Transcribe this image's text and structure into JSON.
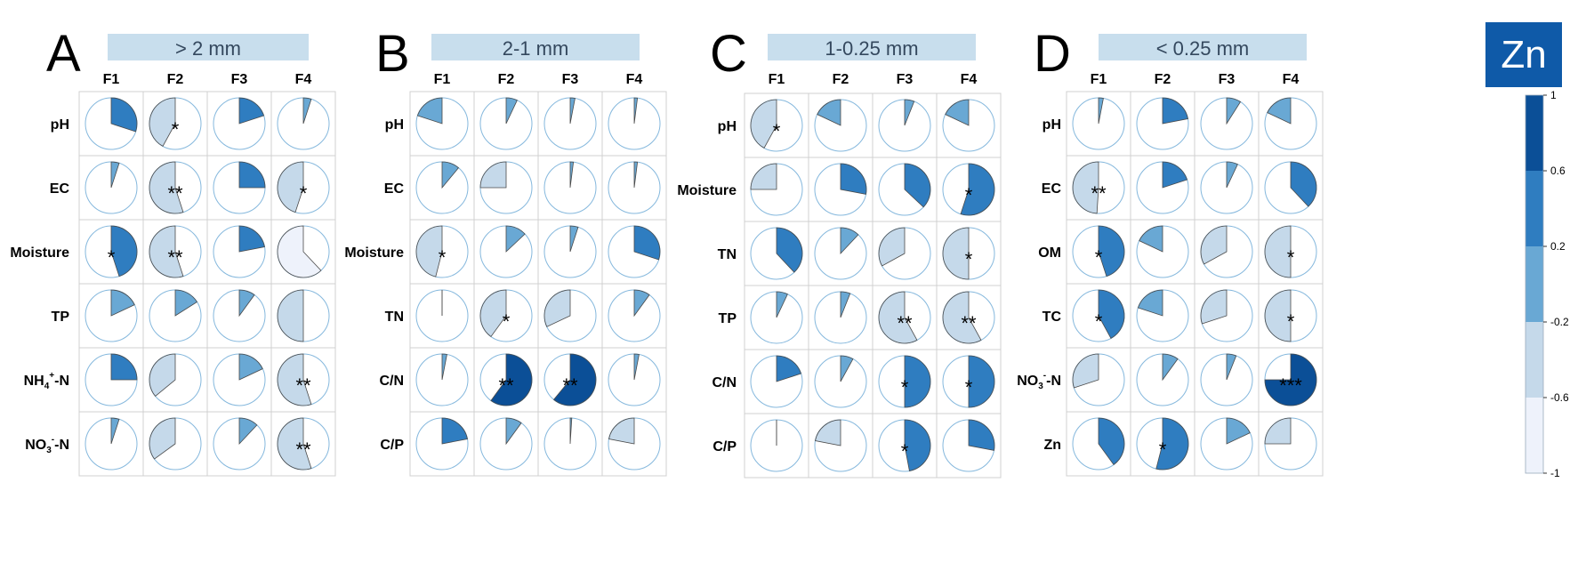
{
  "colors": {
    "level_1": "#eef2fb",
    "level_2": "#c5d9ea",
    "level_3": "#69a8d4",
    "level_4": "#2f7dc0",
    "level_5": "#0b4f97",
    "circle_stroke": "#85b8dd",
    "grid": "#d0d0d0",
    "header_fill": "#c8deed",
    "header_text": "#34485e",
    "badge_fill": "#0f5aa8",
    "badge_text": "#ffffff"
  },
  "badge": {
    "label": "Zn"
  },
  "colorbar": {
    "ticks": [
      "1",
      "0.6",
      "0.2",
      "-0.2",
      "-0.6",
      "-1"
    ],
    "levels": [
      "level_5",
      "level_4",
      "level_3",
      "level_2",
      "level_1"
    ]
  },
  "chart_data": [
    {
      "type": "heatmap",
      "panel": "A",
      "title": "> 2 mm",
      "columns": [
        "F1",
        "F2",
        "F3",
        "F4"
      ],
      "rows": [
        "pH",
        "EC",
        "Moisture",
        "TP",
        "NH4+-N",
        "NO3--N"
      ],
      "row_labels": [
        {
          "main": "pH"
        },
        {
          "main": "EC"
        },
        {
          "main": "Moisture"
        },
        {
          "main": "TP"
        },
        {
          "main": "NH",
          "sub": "4",
          "sup": "+",
          "tail": "-N"
        },
        {
          "main": "NO",
          "sub": "3",
          "sup": "-",
          "tail": "-N"
        }
      ],
      "values": [
        [
          0.3,
          -0.42,
          0.2,
          0.05
        ],
        [
          0.05,
          -0.55,
          0.25,
          -0.45
        ],
        [
          0.45,
          -0.55,
          0.22,
          -0.62
        ],
        [
          0.18,
          0.16,
          0.1,
          -0.5
        ],
        [
          0.25,
          -0.36,
          0.18,
          -0.55
        ],
        [
          0.05,
          -0.35,
          0.12,
          -0.55
        ]
      ],
      "significance": [
        [
          "",
          "*",
          "",
          ""
        ],
        [
          "",
          "**",
          "",
          "*"
        ],
        [
          "*",
          "**",
          "",
          ""
        ],
        [
          "",
          "",
          "",
          ""
        ],
        [
          "",
          "",
          "",
          "**"
        ],
        [
          "",
          "",
          "",
          "**"
        ]
      ]
    },
    {
      "type": "heatmap",
      "panel": "B",
      "title": "2-1 mm",
      "columns": [
        "F1",
        "F2",
        "F3",
        "F4"
      ],
      "rows": [
        "pH",
        "EC",
        "Moisture",
        "TN",
        "C/N",
        "C/P"
      ],
      "row_labels": [
        {
          "main": "pH"
        },
        {
          "main": "EC"
        },
        {
          "main": "Moisture"
        },
        {
          "main": "TN"
        },
        {
          "main": "C/N"
        },
        {
          "main": "C/P"
        }
      ],
      "values": [
        [
          -0.2,
          0.07,
          0.03,
          0.02
        ],
        [
          0.11,
          -0.25,
          0.02,
          0.02
        ],
        [
          -0.46,
          0.13,
          0.05,
          0.3
        ],
        [
          0.0,
          -0.4,
          -0.32,
          0.1
        ],
        [
          0.03,
          0.6,
          0.61,
          0.03
        ],
        [
          0.22,
          0.1,
          0.01,
          -0.22
        ]
      ],
      "significance": [
        [
          "",
          "",
          "",
          ""
        ],
        [
          "",
          "",
          "",
          ""
        ],
        [
          "*",
          "",
          "",
          ""
        ],
        [
          "",
          "*",
          "",
          ""
        ],
        [
          "",
          "**",
          "**",
          ""
        ],
        [
          "",
          "",
          "",
          ""
        ]
      ]
    },
    {
      "type": "heatmap",
      "panel": "C",
      "title": "1-0.25 mm",
      "columns": [
        "F1",
        "F2",
        "F3",
        "F4"
      ],
      "rows": [
        "pH",
        "Moisture",
        "TN",
        "TP",
        "C/N",
        "C/P"
      ],
      "row_labels": [
        {
          "main": "pH"
        },
        {
          "main": "Moisture"
        },
        {
          "main": "TN"
        },
        {
          "main": "TP"
        },
        {
          "main": "C/N"
        },
        {
          "main": "C/P"
        }
      ],
      "values": [
        [
          -0.42,
          -0.18,
          0.06,
          -0.18
        ],
        [
          -0.25,
          0.28,
          0.37,
          0.55
        ],
        [
          0.38,
          0.12,
          -0.33,
          -0.5
        ],
        [
          0.07,
          0.06,
          -0.58,
          -0.58
        ],
        [
          0.2,
          0.08,
          0.5,
          0.5
        ],
        [
          0.0,
          -0.22,
          0.47,
          0.28
        ]
      ],
      "significance": [
        [
          "*",
          "",
          "",
          ""
        ],
        [
          "",
          "",
          "",
          "*"
        ],
        [
          "",
          "",
          "",
          "*"
        ],
        [
          "",
          "",
          "**",
          "**"
        ],
        [
          "",
          "",
          "*",
          "*"
        ],
        [
          "",
          "",
          "*",
          ""
        ]
      ]
    },
    {
      "type": "heatmap",
      "panel": "D",
      "title": "< 0.25 mm",
      "columns": [
        "F1",
        "F2",
        "F3",
        "F4"
      ],
      "rows": [
        "pH",
        "EC",
        "OM",
        "TC",
        "NO3--N",
        "Zn"
      ],
      "row_labels": [
        {
          "main": "pH"
        },
        {
          "main": "EC"
        },
        {
          "main": "OM"
        },
        {
          "main": "TC"
        },
        {
          "main": "NO",
          "sub": "3",
          "sup": "-",
          "tail": "-N"
        },
        {
          "main": "Zn"
        }
      ],
      "values": [
        [
          0.03,
          0.22,
          0.09,
          -0.18
        ],
        [
          -0.49,
          0.2,
          0.07,
          0.38
        ],
        [
          0.45,
          -0.18,
          -0.33,
          -0.5
        ],
        [
          0.42,
          -0.2,
          -0.3,
          -0.5
        ],
        [
          -0.3,
          0.1,
          0.06,
          0.75
        ],
        [
          0.4,
          0.54,
          0.18,
          -0.25
        ]
      ],
      "significance": [
        [
          "",
          "",
          "",
          ""
        ],
        [
          "**",
          "",
          "",
          ""
        ],
        [
          "*",
          "",
          "",
          "*"
        ],
        [
          "*",
          "",
          "",
          "*"
        ],
        [
          "",
          "",
          "",
          "***"
        ],
        [
          "",
          "*",
          "",
          ""
        ]
      ]
    }
  ]
}
